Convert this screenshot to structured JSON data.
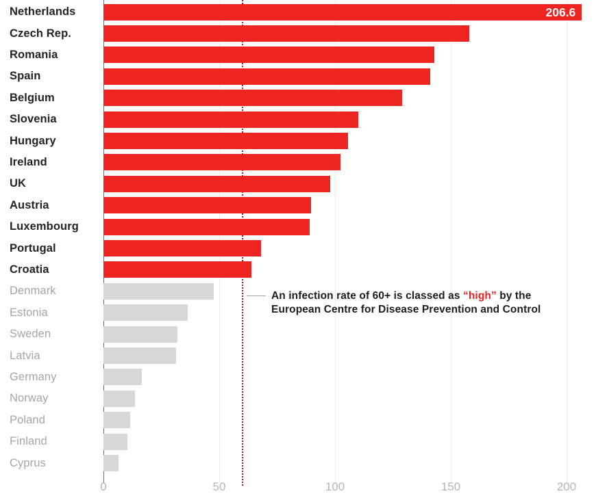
{
  "chart_data": {
    "type": "bar",
    "orientation": "horizontal",
    "title": "",
    "xlabel": "",
    "ylabel": "",
    "xlim": [
      0,
      210
    ],
    "x_ticks": [
      0,
      50,
      100,
      150,
      200
    ],
    "grid": true,
    "threshold": {
      "value": 60,
      "meaning": "infection rate classed as high",
      "color": "#c41414",
      "style": "dotted"
    },
    "bar_colors": {
      "high": "#ee2421",
      "low": "#d7d7d7"
    },
    "series": [
      {
        "country": "Netherlands",
        "value": 206.6,
        "value_label": "206.6",
        "group": "high"
      },
      {
        "country": "Czech Rep.",
        "value": 158,
        "group": "high"
      },
      {
        "country": "Romania",
        "value": 143,
        "group": "high"
      },
      {
        "country": "Spain",
        "value": 141,
        "group": "high"
      },
      {
        "country": "Belgium",
        "value": 129,
        "group": "high"
      },
      {
        "country": "Slovenia",
        "value": 110,
        "group": "high"
      },
      {
        "country": "Hungary",
        "value": 105.5,
        "group": "high"
      },
      {
        "country": "Ireland",
        "value": 102.5,
        "group": "high"
      },
      {
        "country": "UK",
        "value": 98,
        "group": "high"
      },
      {
        "country": "Austria",
        "value": 89.5,
        "group": "high"
      },
      {
        "country": "Luxembourg",
        "value": 89,
        "group": "high"
      },
      {
        "country": "Portugal",
        "value": 68,
        "group": "high"
      },
      {
        "country": "Croatia",
        "value": 64,
        "group": "high"
      },
      {
        "country": "Denmark",
        "value": 47.5,
        "group": "low"
      },
      {
        "country": "Estonia",
        "value": 36.5,
        "group": "low"
      },
      {
        "country": "Sweden",
        "value": 32,
        "group": "low"
      },
      {
        "country": "Latvia",
        "value": 31.5,
        "group": "low"
      },
      {
        "country": "Germany",
        "value": 16.5,
        "group": "low"
      },
      {
        "country": "Norway",
        "value": 13.5,
        "group": "low"
      },
      {
        "country": "Poland",
        "value": 11.5,
        "group": "low"
      },
      {
        "country": "Finland",
        "value": 10.5,
        "group": "low"
      },
      {
        "country": "Cyprus",
        "value": 6.5,
        "group": "low"
      }
    ],
    "annotation": {
      "line1_before": "An infection rate of 60+ is classed as ",
      "line1_highlight": "“high”",
      "line1_after": " by the",
      "line2": "European Centre for Disease Prevention and Control"
    }
  }
}
